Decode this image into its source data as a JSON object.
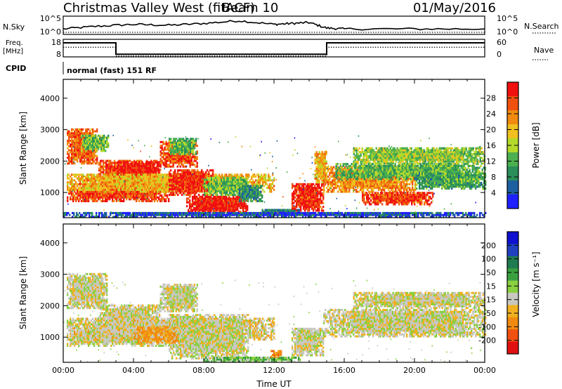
{
  "header": {
    "title": "Christmas Valley West (fitACF)",
    "beam": "Beam 10",
    "date": "01/May/2016"
  },
  "strips": {
    "nsky_label": "N.Sky",
    "nsky_ticks": [
      "10^5",
      "10^0"
    ],
    "nsearch_label": "N.Search",
    "nsearch_ticks": [
      "10^5",
      "10^0"
    ],
    "freq_label_1": "Freq.",
    "freq_label_2": "[MHz]",
    "freq_ticks": [
      "18",
      "8"
    ],
    "nave_label": "Nave",
    "nave_ticks": [
      "60",
      "0"
    ],
    "cpid_label": "CPID",
    "cpid_text": "normal (fast) 151 RF"
  },
  "colors": {
    "power": [
      "#2020ff",
      "#1e5fa0",
      "#2a8f5a",
      "#4caf50",
      "#b5d92a",
      "#f0c020",
      "#f08a10",
      "#f05010",
      "#f01010"
    ],
    "velocity": [
      "#e01010",
      "#f05010",
      "#f08a10",
      "#f0b020",
      "#c8c8c0",
      "#8ad040",
      "#3aa040",
      "#207a50",
      "#2040c0",
      "#1010d0"
    ],
    "ground": "#c0c0b8"
  },
  "chart_data": [
    {
      "type": "heatmap",
      "name": "power",
      "ylabel": "Slant Range [km]",
      "yticks": [
        "4000",
        "3000",
        "2000",
        "1000"
      ],
      "ylim": [
        200,
        4600
      ],
      "xlabel": "Time UT",
      "xticks": [
        "00:00",
        "04:00",
        "08:00",
        "12:00",
        "16:00",
        "20:00",
        "00:00"
      ],
      "xlim_hours": [
        0,
        24
      ],
      "colorbar_label": "Power [dB]",
      "colorbar_ticks": [
        "28",
        "24",
        "20",
        "16",
        "12",
        "8",
        "4"
      ],
      "bands": [
        {
          "t0": 0.2,
          "t1": 1.9,
          "r0": 1900,
          "r1": 3000,
          "v": 24
        },
        {
          "t0": 1.0,
          "t1": 2.6,
          "r0": 2300,
          "r1": 2800,
          "v": 14
        },
        {
          "t0": 2.0,
          "t1": 5.5,
          "r0": 1200,
          "r1": 2000,
          "v": 25
        },
        {
          "t0": 3.0,
          "t1": 5.5,
          "r0": 1400,
          "r1": 2000,
          "v": 28
        },
        {
          "t0": 5.5,
          "t1": 7.6,
          "r0": 1800,
          "r1": 2600,
          "v": 25
        },
        {
          "t0": 6.0,
          "t1": 7.6,
          "r0": 2200,
          "r1": 2700,
          "v": 13
        },
        {
          "t0": 0.2,
          "t1": 6.0,
          "r0": 700,
          "r1": 1300,
          "v": 26
        },
        {
          "t0": 0.2,
          "t1": 12.0,
          "r0": 1000,
          "r1": 1600,
          "v": 20
        },
        {
          "t0": 6.0,
          "t1": 8.5,
          "r0": 900,
          "r1": 1700,
          "v": 27
        },
        {
          "t0": 7.0,
          "t1": 10.5,
          "r0": 300,
          "r1": 900,
          "v": 28
        },
        {
          "t0": 8.0,
          "t1": 10.5,
          "r0": 900,
          "r1": 1500,
          "v": 14
        },
        {
          "t0": 10.0,
          "t1": 11.3,
          "r0": 700,
          "r1": 1200,
          "v": 10
        },
        {
          "t0": 11.3,
          "t1": 13.5,
          "r0": 300,
          "r1": 450,
          "v": 9
        },
        {
          "t0": 13.0,
          "t1": 14.8,
          "r0": 400,
          "r1": 1300,
          "v": 27
        },
        {
          "t0": 14.3,
          "t1": 15.0,
          "r0": 1300,
          "r1": 2300,
          "v": 20
        },
        {
          "t0": 14.8,
          "t1": 20.0,
          "r0": 1000,
          "r1": 1800,
          "v": 22
        },
        {
          "t0": 15.5,
          "t1": 24.0,
          "r0": 1400,
          "r1": 1900,
          "v": 13
        },
        {
          "t0": 17.0,
          "t1": 21.0,
          "r0": 600,
          "r1": 1000,
          "v": 26
        },
        {
          "t0": 16.5,
          "t1": 24.0,
          "r0": 1900,
          "r1": 2400,
          "v": 15
        },
        {
          "t0": 20.0,
          "t1": 24.0,
          "r0": 1100,
          "r1": 1600,
          "v": 12
        },
        {
          "t0": 0.0,
          "t1": 24.0,
          "r0": 200,
          "r1": 350,
          "v": 6
        }
      ]
    },
    {
      "type": "heatmap",
      "name": "velocity",
      "ylabel": "Slant Range [km]",
      "yticks": [
        "4000",
        "3000",
        "2000",
        "1000"
      ],
      "ylim": [
        200,
        4600
      ],
      "xlabel": "Time UT",
      "xticks": [
        "00:00",
        "04:00",
        "08:00",
        "12:00",
        "16:00",
        "20:00",
        "00:00"
      ],
      "xlim_hours": [
        0,
        24
      ],
      "colorbar_label": "Velocity [m s⁻¹]",
      "colorbar_ticks": [
        "200",
        "100",
        "50",
        "15",
        "-15",
        "-50",
        "-100",
        "-200"
      ],
      "bands": [
        {
          "t0": 0.2,
          "t1": 2.5,
          "r0": 1900,
          "r1": 3000,
          "v": 0
        },
        {
          "t0": 2.0,
          "t1": 5.5,
          "r0": 1200,
          "r1": 2000,
          "v": 0
        },
        {
          "t0": 5.5,
          "t1": 7.6,
          "r0": 1800,
          "r1": 2700,
          "v": 0
        },
        {
          "t0": 0.2,
          "t1": 6.0,
          "r0": 700,
          "r1": 1300,
          "v": 0
        },
        {
          "t0": 0.2,
          "t1": 12.0,
          "r0": 900,
          "r1": 1600,
          "v": -5
        },
        {
          "t0": 6.0,
          "t1": 10.5,
          "r0": 300,
          "r1": 1700,
          "v": 0
        },
        {
          "t0": 4.0,
          "t1": 6.5,
          "r0": 800,
          "r1": 1300,
          "v": -40
        },
        {
          "t0": 13.0,
          "t1": 14.8,
          "r0": 400,
          "r1": 1300,
          "v": 0
        },
        {
          "t0": 14.8,
          "t1": 24.0,
          "r0": 1000,
          "r1": 1900,
          "v": 0
        },
        {
          "t0": 16.5,
          "t1": 24.0,
          "r0": 1900,
          "r1": 2400,
          "v": 0
        },
        {
          "t0": 8.0,
          "t1": 13.5,
          "r0": 200,
          "r1": 350,
          "v": 30
        },
        {
          "t0": 11.8,
          "t1": 12.4,
          "r0": 350,
          "r1": 550,
          "v": -60
        }
      ]
    }
  ],
  "nsky_series": [
    [
      0,
      0.3
    ],
    [
      2,
      0.45
    ],
    [
      4,
      0.55
    ],
    [
      6,
      0.5
    ],
    [
      8,
      0.6
    ],
    [
      10,
      0.75
    ],
    [
      12,
      0.55
    ],
    [
      13,
      0.6
    ],
    [
      14,
      0.65
    ],
    [
      15,
      0.35
    ],
    [
      16,
      0.3
    ],
    [
      20,
      0.3
    ],
    [
      24,
      0.3
    ]
  ],
  "freq_series": [
    [
      0,
      0.8
    ],
    [
      3,
      0.8
    ],
    [
      3,
      0.15
    ],
    [
      15,
      0.15
    ],
    [
      15,
      0.8
    ],
    [
      24,
      0.8
    ]
  ],
  "nave_series": [
    [
      0,
      0.55
    ],
    [
      3,
      0.55
    ],
    [
      3,
      0.05
    ],
    [
      15,
      0.05
    ],
    [
      15,
      0.55
    ],
    [
      24,
      0.55
    ]
  ]
}
